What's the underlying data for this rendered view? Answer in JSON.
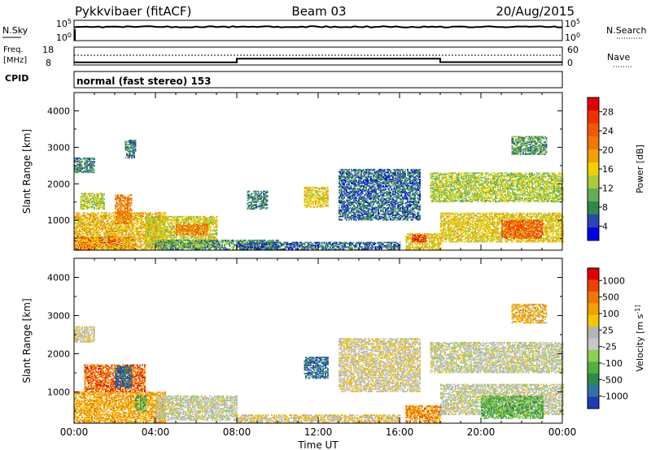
{
  "header": {
    "station": "Pykkvibaer (fitACF)",
    "beam": "Beam 03",
    "date": "20/Aug/2015"
  },
  "noise_panel": {
    "left_label": "N.Sky",
    "left_ticks": [
      "10^5",
      "10^0"
    ],
    "right_label": "N.Search",
    "right_ticks": [
      "10^5",
      "10^0"
    ]
  },
  "freq_panel": {
    "left_label_top": "Freq.",
    "left_label_bottom": "[MHz]",
    "left_ticks": [
      "18",
      "8"
    ],
    "right_label": "Nave",
    "right_ticks": [
      "60",
      "0"
    ],
    "freq_steps": [
      [
        0,
        9.5
      ],
      [
        8,
        11.5
      ],
      [
        18,
        9.6
      ],
      [
        24,
        9.6
      ]
    ],
    "nave_level": 12
  },
  "cpid": {
    "label": "CPID",
    "value": "normal (fast stereo) 153"
  },
  "chart_data": [
    {
      "type": "heatmap",
      "name": "power",
      "ylabel": "Slant Range [km]",
      "ylim": [
        180,
        4500
      ],
      "yticks": [
        1000,
        2000,
        3000,
        4000
      ],
      "xlim": [
        0,
        24
      ],
      "xticks": [
        "00:00",
        "04:00",
        "08:00",
        "12:00",
        "16:00",
        "20:00",
        "00:00"
      ],
      "colorbar": {
        "label": "Power [dB]",
        "ticks": [
          "4",
          "8",
          "12",
          "16",
          "20",
          "24",
          "28"
        ],
        "colors": [
          "#0000e8",
          "#2846b4",
          "#2e8a4a",
          "#62ae58",
          "#a8cc3c",
          "#f0d000",
          "#f0a000",
          "#f07800",
          "#f05a00",
          "#f03000",
          "#e00000"
        ]
      },
      "regions": [
        {
          "t0": 0.0,
          "t1": 3.0,
          "r0": 200,
          "r1": 550,
          "level": 9.5
        },
        {
          "t0": 0.0,
          "t1": 4.5,
          "r0": 200,
          "r1": 1200,
          "level": 5.5
        },
        {
          "t0": 0.3,
          "t1": 1.5,
          "r0": 1300,
          "r1": 1750,
          "level": 4
        },
        {
          "t0": 2.0,
          "t1": 2.8,
          "r0": 900,
          "r1": 1700,
          "level": 7
        },
        {
          "t0": 3.5,
          "t1": 7.0,
          "r0": 250,
          "r1": 1100,
          "level": 4.5
        },
        {
          "t0": 5.0,
          "t1": 6.5,
          "r0": 600,
          "r1": 900,
          "level": 7
        },
        {
          "t0": 4.0,
          "t1": 10.0,
          "r0": 200,
          "r1": 450,
          "level": 2.5
        },
        {
          "t0": 11.3,
          "t1": 12.5,
          "r0": 1350,
          "r1": 1900,
          "level": 5
        },
        {
          "t0": 16.3,
          "t1": 18.0,
          "r0": 200,
          "r1": 650,
          "level": 5
        },
        {
          "t0": 16.6,
          "t1": 17.3,
          "r0": 400,
          "r1": 600,
          "level": 9
        },
        {
          "t0": 17.5,
          "t1": 24.0,
          "r0": 1500,
          "r1": 2300,
          "level": 4
        },
        {
          "t0": 18.0,
          "t1": 24.0,
          "r0": 400,
          "r1": 1200,
          "level": 5
        },
        {
          "t0": 21.0,
          "t1": 23.0,
          "r0": 500,
          "r1": 1000,
          "level": 8
        },
        {
          "t0": 21.5,
          "t1": 23.2,
          "r0": 2800,
          "r1": 3300,
          "level": 2.5
        },
        {
          "t0": 0.0,
          "t1": 1.0,
          "r0": 2300,
          "r1": 2700,
          "level": 2
        },
        {
          "t0": 2.5,
          "t1": 3.0,
          "r0": 2700,
          "r1": 3200,
          "level": 2
        },
        {
          "t0": 8.0,
          "t1": 16.0,
          "r0": 200,
          "r1": 400,
          "level": 1.5
        },
        {
          "t0": 13.0,
          "t1": 17.0,
          "r0": 1000,
          "r1": 2400,
          "level": 1.5
        },
        {
          "t0": 8.5,
          "t1": 9.5,
          "r0": 1300,
          "r1": 1800,
          "level": 2
        }
      ]
    },
    {
      "type": "heatmap",
      "name": "velocity",
      "ylabel": "Slant Range [km]",
      "ylim": [
        180,
        4500
      ],
      "yticks": [
        1000,
        2000,
        3000,
        4000
      ],
      "xlim": [
        0,
        24
      ],
      "xticks": [
        "00:00",
        "04:00",
        "08:00",
        "12:00",
        "16:00",
        "20:00",
        "00:00"
      ],
      "xlabel": "Time UT",
      "colorbar": {
        "label": "Velocity [m s^-1]",
        "ticks": [
          "1000",
          "500",
          "100",
          "25",
          "-25",
          "-100",
          "-500",
          "-1000"
        ],
        "colors": [
          "#1f3cb4",
          "#2d72a8",
          "#2e8a4a",
          "#52b040",
          "#8cd050",
          "#c8c8c8",
          "#b4b4b4",
          "#f0c800",
          "#f0a000",
          "#f07800",
          "#f04000",
          "#e00000"
        ]
      },
      "regions": [
        {
          "t0": 0.0,
          "t1": 4.5,
          "r0": 200,
          "r1": 1000,
          "level": 8
        },
        {
          "t0": 0.5,
          "t1": 3.5,
          "r0": 1000,
          "r1": 1700,
          "level": 9.5
        },
        {
          "t0": 2.0,
          "t1": 2.8,
          "r0": 1100,
          "r1": 1700,
          "level": 1
        },
        {
          "t0": 4.0,
          "t1": 8.0,
          "r0": 250,
          "r1": 900,
          "level": 5.5
        },
        {
          "t0": 3.0,
          "t1": 3.5,
          "r0": 500,
          "r1": 900,
          "level": 3
        },
        {
          "t0": 11.3,
          "t1": 12.5,
          "r0": 1350,
          "r1": 1900,
          "level": 1
        },
        {
          "t0": 16.3,
          "t1": 18.0,
          "r0": 200,
          "r1": 650,
          "level": 8.5
        },
        {
          "t0": 17.5,
          "t1": 24.0,
          "r0": 1500,
          "r1": 2300,
          "level": 5.5
        },
        {
          "t0": 18.0,
          "t1": 24.0,
          "r0": 400,
          "r1": 1200,
          "level": 5.5
        },
        {
          "t0": 20.0,
          "t1": 23.0,
          "r0": 300,
          "r1": 900,
          "level": 3
        },
        {
          "t0": 21.5,
          "t1": 23.2,
          "r0": 2800,
          "r1": 3300,
          "level": 7.5
        },
        {
          "t0": 0.0,
          "t1": 1.0,
          "r0": 2300,
          "r1": 2700,
          "level": 6
        },
        {
          "t0": 8.0,
          "t1": 16.0,
          "r0": 200,
          "r1": 400,
          "level": 6.5
        },
        {
          "t0": 13.0,
          "t1": 17.0,
          "r0": 1000,
          "r1": 2400,
          "level": 6
        }
      ]
    }
  ]
}
